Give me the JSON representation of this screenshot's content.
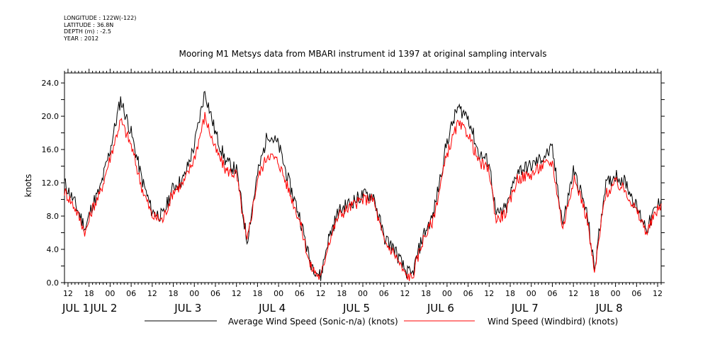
{
  "header": {
    "longitude": "LONGITUDE : 122W(-122)",
    "latitude": "LATITUDE : 36.8N",
    "depth": "DEPTH (m) : -2.5",
    "year": "YEAR : 2012"
  },
  "chart_data": {
    "type": "line",
    "title": "Mooring M1 Metsys data from MBARI instrument id 1397 at original sampling intervals",
    "xlabel": "",
    "ylabel": "knots",
    "ylim": [
      0,
      25.2
    ],
    "y_ticks": [
      "0.0",
      "4.0",
      "8.0",
      "12.0",
      "16.0",
      "20.0",
      "24.0"
    ],
    "x_range": [
      "2012-07-01 11:00",
      "2012-07-08 13:00"
    ],
    "x_tick_labels": [
      "12",
      "18",
      "00",
      "06",
      "12",
      "18",
      "00",
      "06",
      "12",
      "18",
      "00",
      "06",
      "12",
      "18",
      "00",
      "06",
      "12",
      "18",
      "00",
      "06",
      "12",
      "18",
      "00",
      "06",
      "12",
      "18",
      "00",
      "06",
      "12"
    ],
    "day_labels": [
      "JUL 1",
      "JUL 2",
      "JUL 3",
      "JUL 4",
      "JUL 5",
      "JUL 6",
      "JUL 7",
      "JUL 8"
    ],
    "grid": false,
    "legend": "bottom",
    "series": [
      {
        "name": "Average Wind Speed (Sonic-n/a) (knots)",
        "color": "#000000",
        "x": [
          "07-01 11:00",
          "07-01 14:00",
          "07-01 17:00",
          "07-01 19:00",
          "07-01 21:00",
          "07-02 00:00",
          "07-02 03:00",
          "07-02 06:00",
          "07-02 09:00",
          "07-02 12:00",
          "07-02 15:00",
          "07-02 18:00",
          "07-02 21:00",
          "07-03 00:00",
          "07-03 03:00",
          "07-03 06:00",
          "07-03 09:00",
          "07-03 12:00",
          "07-03 15:00",
          "07-03 18:00",
          "07-03 21:00",
          "07-04 00:00",
          "07-04 03:00",
          "07-04 06:00",
          "07-04 09:00",
          "07-04 12:00",
          "07-04 14:00",
          "07-04 17:00",
          "07-04 20:00",
          "07-05 00:00",
          "07-05 03:00",
          "07-05 06:00",
          "07-05 09:00",
          "07-05 12:00",
          "07-05 14:00",
          "07-05 17:00",
          "07-05 20:00",
          "07-06 00:00",
          "07-06 03:00",
          "07-06 06:00",
          "07-06 09:00",
          "07-06 12:00",
          "07-06 14:00",
          "07-06 17:00",
          "07-06 20:00",
          "07-07 00:00",
          "07-07 03:00",
          "07-07 06:00",
          "07-07 09:00",
          "07-07 12:00",
          "07-07 14:00",
          "07-07 16:00",
          "07-07 18:00",
          "07-07 21:00",
          "07-08 00:00",
          "07-08 03:00",
          "07-08 06:00",
          "07-08 09:00",
          "07-08 11:00",
          "07-08 13:00"
        ],
        "values": [
          12.0,
          9.5,
          6.5,
          9.5,
          11.0,
          16.0,
          22.0,
          18.0,
          12.5,
          8.5,
          8.0,
          11.5,
          12.5,
          16.5,
          23.0,
          18.0,
          14.5,
          13.5,
          5.0,
          13.0,
          18.0,
          16.5,
          12.0,
          8.0,
          2.5,
          0.7,
          5.0,
          8.5,
          9.5,
          10.5,
          10.5,
          5.5,
          4.0,
          1.5,
          0.8,
          5.5,
          8.0,
          17.0,
          21.0,
          20.0,
          15.5,
          14.5,
          8.0,
          9.0,
          13.5,
          14.0,
          15.0,
          16.0,
          7.0,
          13.5,
          11.0,
          8.0,
          1.5,
          11.5,
          13.0,
          12.0,
          9.0,
          6.5,
          8.5,
          10.0
        ]
      },
      {
        "name": "Wind Speed (Windbird) (knots)",
        "color": "#ff0000",
        "x": [
          "07-01 11:00",
          "07-01 14:00",
          "07-01 17:00",
          "07-01 19:00",
          "07-01 21:00",
          "07-02 00:00",
          "07-02 03:00",
          "07-02 06:00",
          "07-02 09:00",
          "07-02 12:00",
          "07-02 15:00",
          "07-02 18:00",
          "07-02 21:00",
          "07-03 00:00",
          "07-03 03:00",
          "07-03 06:00",
          "07-03 09:00",
          "07-03 12:00",
          "07-03 15:00",
          "07-03 18:00",
          "07-03 21:00",
          "07-04 00:00",
          "07-04 03:00",
          "07-04 06:00",
          "07-04 09:00",
          "07-04 12:00",
          "07-04 14:00",
          "07-04 17:00",
          "07-04 20:00",
          "07-05 00:00",
          "07-05 03:00",
          "07-05 06:00",
          "07-05 09:00",
          "07-05 12:00",
          "07-05 14:00",
          "07-05 17:00",
          "07-05 20:00",
          "07-06 00:00",
          "07-06 03:00",
          "07-06 06:00",
          "07-06 09:00",
          "07-06 12:00",
          "07-06 14:00",
          "07-06 17:00",
          "07-06 20:00",
          "07-07 00:00",
          "07-07 03:00",
          "07-07 06:00",
          "07-07 09:00",
          "07-07 12:00",
          "07-07 14:00",
          "07-07 16:00",
          "07-07 18:00",
          "07-07 21:00",
          "07-08 00:00",
          "07-08 03:00",
          "07-08 06:00",
          "07-08 09:00",
          "07-08 11:00",
          "07-08 13:00"
        ],
        "values": [
          11.0,
          9.0,
          6.0,
          9.0,
          10.5,
          15.0,
          19.5,
          16.5,
          11.5,
          8.0,
          7.5,
          11.0,
          12.0,
          15.0,
          20.0,
          16.0,
          13.5,
          13.0,
          4.8,
          12.5,
          15.5,
          14.5,
          11.0,
          7.5,
          2.0,
          0.5,
          4.5,
          8.0,
          9.0,
          10.0,
          10.0,
          5.0,
          3.5,
          1.0,
          0.5,
          5.0,
          7.5,
          15.5,
          19.0,
          18.0,
          14.5,
          13.5,
          7.5,
          8.5,
          12.5,
          13.0,
          14.0,
          14.5,
          6.5,
          12.5,
          10.5,
          7.5,
          1.0,
          10.5,
          12.0,
          11.0,
          8.5,
          6.0,
          8.0,
          9.5
        ]
      }
    ]
  }
}
